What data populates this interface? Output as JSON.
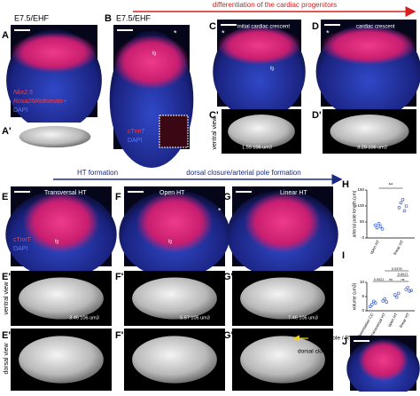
{
  "header": {
    "top_arrow": "differentiation of the cardiac progenitors",
    "mid_arrow_left": "HT formation",
    "mid_arrow_right": "dorsal closure/arterial pole formation"
  },
  "panel_labels": [
    "A",
    "A'",
    "B",
    "C",
    "C'",
    "D",
    "D'",
    "E",
    "E'",
    "E''",
    "F",
    "F'",
    "F''",
    "G",
    "G'",
    "G''",
    "H",
    "I",
    "J"
  ],
  "titles": [
    "E7.5/EHF",
    "E7.5/EHF",
    "initial cardiac crescent",
    "cardiac crescent",
    "Transversal HT",
    "Open HT",
    "Linear HT"
  ],
  "stains": [
    "Nkx2.5",
    "Rosa26Rtdtomato+",
    "DAPI",
    "cTnnT",
    "DAPI",
    "cTnnT",
    "DAPI"
  ],
  "volumes": [
    "1.55 106 um3",
    "3.29 106 um3",
    "3.46 106 um3",
    "5.57 106 um3",
    "7.46 106 um3"
  ],
  "views": [
    "ventral view",
    "ventral view",
    "dorsal view"
  ],
  "annotations": [
    "arterial pole / RV",
    "dorsal closure",
    "fg",
    "fg",
    "fg",
    "fg",
    "*",
    "*",
    "*",
    "*"
  ],
  "chart_h": {
    "ylabel": "arterial pole length (um)",
    "categories": [
      "open HT",
      "linear HT"
    ],
    "significance": "**",
    "ylim": [
      0,
      150
    ],
    "yticks": [
      0,
      50,
      100,
      150
    ],
    "series": [
      [
        40,
        32,
        45,
        36,
        28
      ],
      [
        95,
        110,
        120,
        85,
        100
      ]
    ]
  },
  "chart_i": {
    "ylabel": "volume (um3)",
    "categories": [
      "differentiation CC",
      "transversal HT",
      "open HT",
      "linear HT"
    ],
    "pvalues": [
      "0.0021",
      "ns",
      "ns",
      "0.0017",
      "0.0376"
    ],
    "ylim": [
      0,
      10
    ],
    "yticks": [
      0,
      5,
      10
    ],
    "series": [
      [
        1.5,
        2.2,
        3.3,
        2.8
      ],
      [
        3.5,
        4.2,
        3.1
      ],
      [
        5.6,
        4.8,
        6.1
      ],
      [
        7.5,
        8.2,
        6.9,
        7.1
      ]
    ]
  }
}
